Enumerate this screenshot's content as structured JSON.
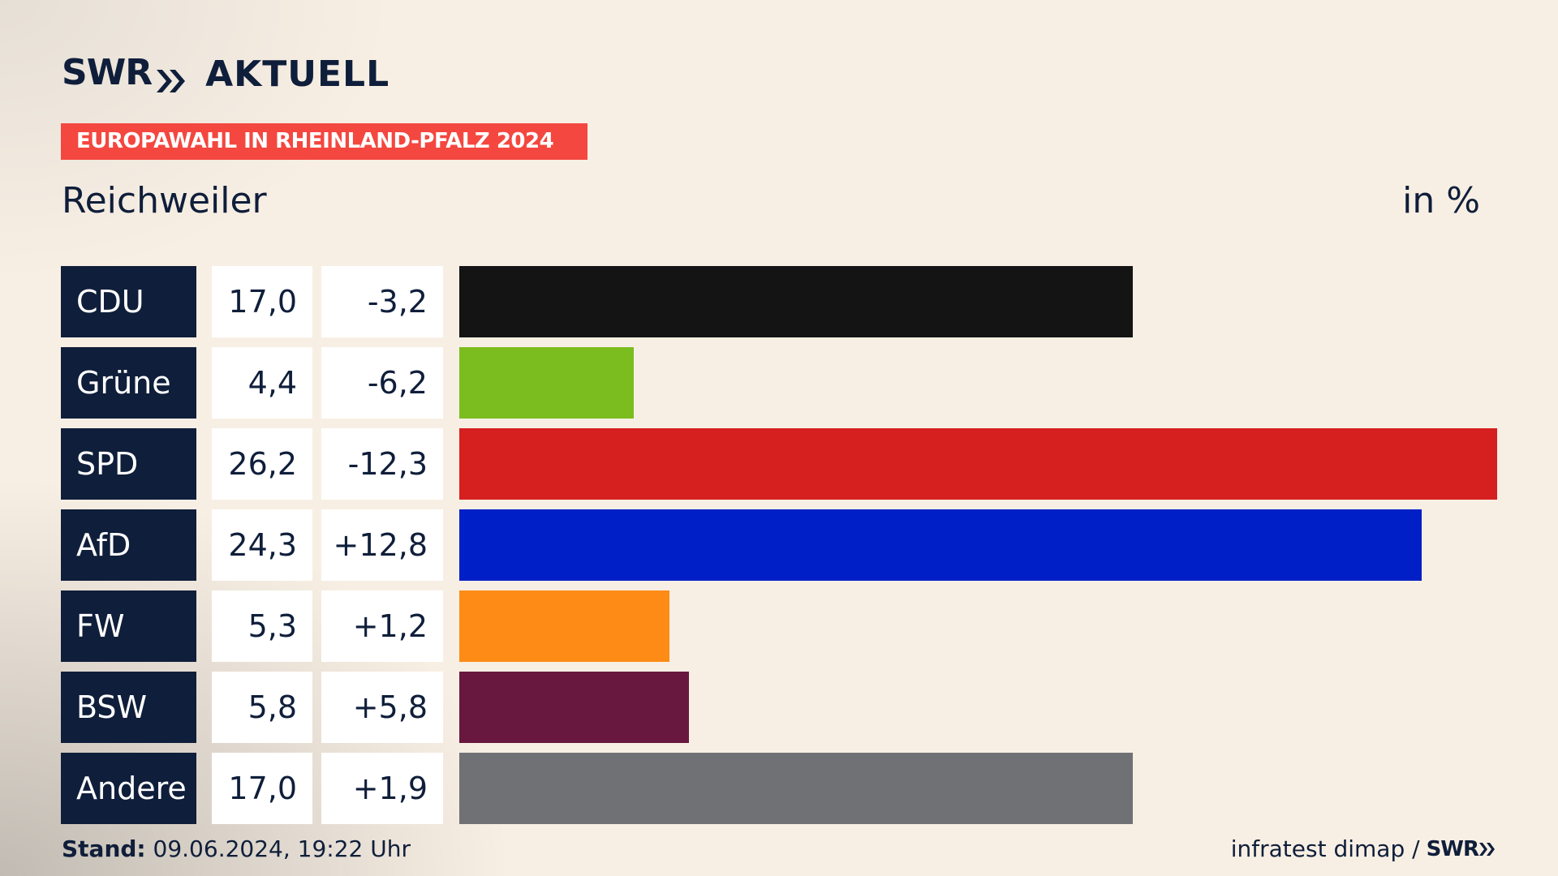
{
  "brand": {
    "logo_left": "SWR",
    "logo_right": "AKTUELL"
  },
  "banner": "EUROPAWAHL IN RHEINLAND-PFALZ 2024",
  "place": "Reichweiler",
  "unit": "in %",
  "footer": {
    "stand_label": "Stand:",
    "stand_value": "09.06.2024, 19:22 Uhr",
    "source": "infratest dimap /",
    "source_brand": "SWR"
  },
  "colors": {
    "background": "#f8efe4",
    "navy": "#0f1e3a",
    "banner": "#f4473f"
  },
  "chart_data": {
    "type": "bar",
    "orientation": "horizontal",
    "categories": [
      "CDU",
      "Grüne",
      "SPD",
      "AfD",
      "FW",
      "BSW",
      "Andere"
    ],
    "values": [
      17.0,
      4.4,
      26.2,
      24.3,
      5.3,
      5.8,
      17.0
    ],
    "value_labels": [
      "17,0",
      "4,4",
      "26,2",
      "24,3",
      "5,3",
      "5,8",
      "17,0"
    ],
    "diff_labels": [
      "-3,2",
      "-6,2",
      "-12,3",
      "+12,8",
      "+1,2",
      "+5,8",
      "+1,9"
    ],
    "colors": [
      "#141414",
      "#7bbd1f",
      "#d61f1f",
      "#011fc6",
      "#fd8b16",
      "#68183f",
      "#707175"
    ],
    "xlim": [
      0,
      26.2
    ],
    "title": "Reichweiler",
    "unit": "in %"
  }
}
